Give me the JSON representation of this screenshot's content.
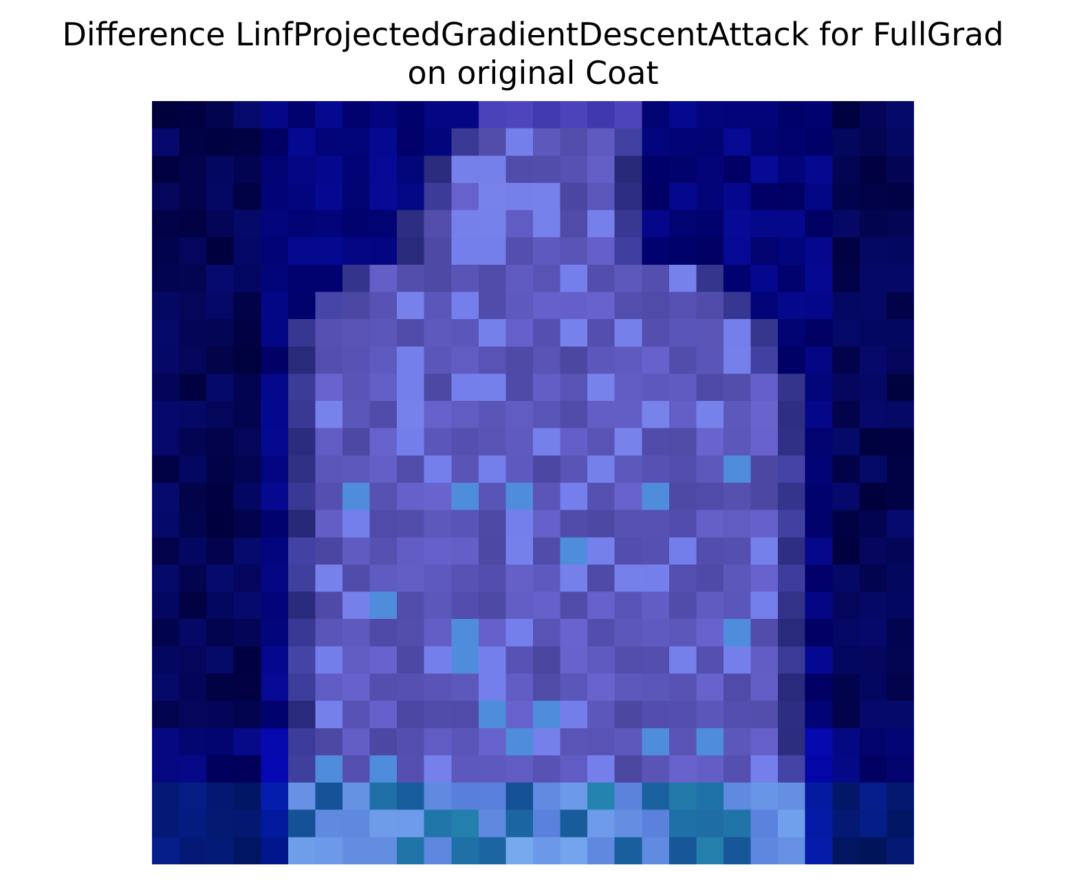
{
  "title": {
    "line1": "Difference LinfProjectedGradientDescentAttack for FullGrad",
    "line2": "on original Coat"
  },
  "image": {
    "description_name": "coat-saliency-difference-heatmap",
    "grid": 28,
    "colors": {
      "background": "#00003a",
      "coat_body": "#5a5ab0",
      "highlight": "#7a8cf0",
      "teal": "#2f9ac8"
    }
  }
}
